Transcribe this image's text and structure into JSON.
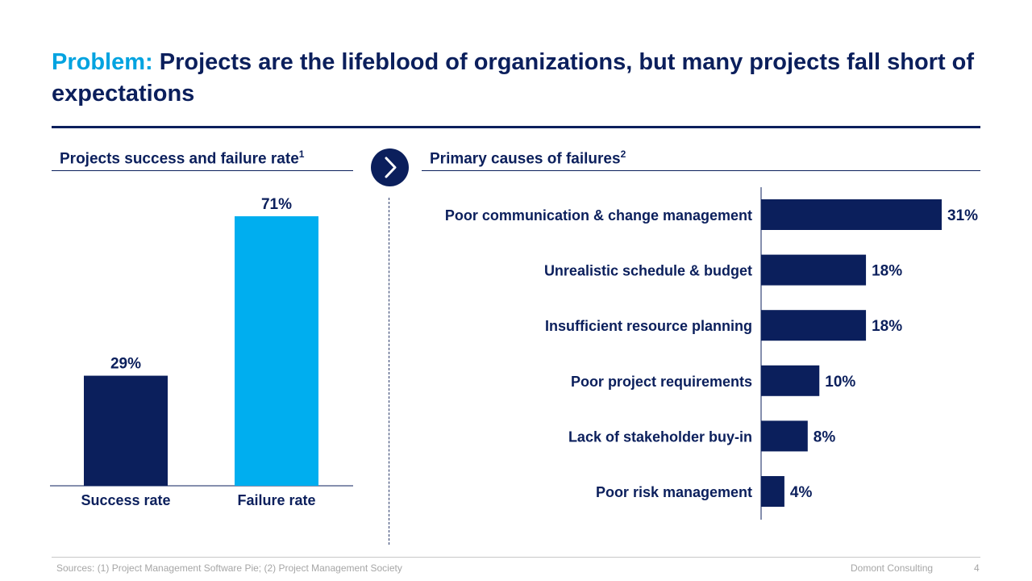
{
  "slide": {
    "title_prefix": "Problem:",
    "title_main": " Projects are the lifeblood of organizations, but many projects fall short of expectations",
    "footer_sources": "Sources: (1) Project Management Software Pie; (2) Project Management Society",
    "footer_company": "Domont Consulting",
    "page_number": "4"
  },
  "left_panel": {
    "heading": "Projects success and failure rate",
    "footnote_ref": "1"
  },
  "right_panel": {
    "heading": "Primary causes of failures",
    "footnote_ref": "2"
  },
  "icons": {
    "arrow": "chevron-right-icon"
  },
  "colors": {
    "navy": "#0b1f5c",
    "cyan": "#00aeef",
    "accent": "#00a3e0"
  },
  "chart_data": [
    {
      "type": "bar",
      "categories": [
        "Success rate",
        "Failure rate"
      ],
      "values": [
        29,
        71
      ],
      "value_labels": [
        "29%",
        "71%"
      ],
      "colors": [
        "#0b1f5c",
        "#00aeef"
      ],
      "ylim": [
        0,
        71
      ]
    },
    {
      "type": "bar",
      "orientation": "horizontal",
      "categories": [
        "Poor communication & change management",
        "Unrealistic schedule & budget",
        "Insufficient resource planning",
        "Poor project requirements",
        "Lack of stakeholder buy-in",
        "Poor risk management"
      ],
      "values": [
        31,
        18,
        18,
        10,
        8,
        4
      ],
      "value_labels": [
        "31%",
        "18%",
        "18%",
        "10%",
        "8%",
        "4%"
      ],
      "xlim": [
        0,
        31
      ]
    }
  ]
}
